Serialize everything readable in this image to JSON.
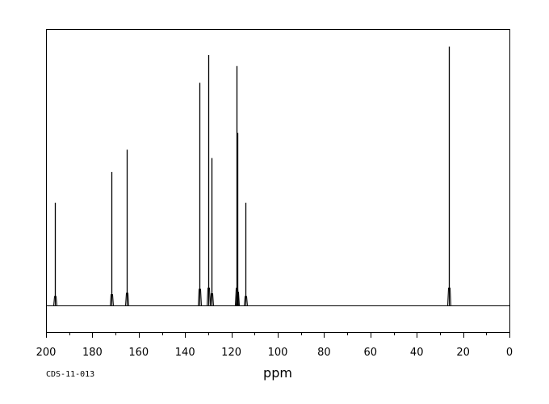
{
  "chart_data": {
    "type": "line",
    "subtype": "13C NMR stick spectrum",
    "title": "",
    "xlabel": "ppm",
    "ylabel": "",
    "xlim": [
      200,
      0
    ],
    "x_reversed": true,
    "ylim": [
      0,
      1
    ],
    "grid": false,
    "legend": "none",
    "x_ticks": [
      200,
      180,
      160,
      140,
      120,
      100,
      80,
      60,
      40,
      20,
      0
    ],
    "x_tick_labels": [
      "200",
      "180",
      "160",
      "140",
      "120",
      "100",
      "80",
      "60",
      "40",
      "20",
      "0"
    ],
    "peaks": [
      {
        "ppm": 196.0,
        "intensity": 0.37
      },
      {
        "ppm": 171.7,
        "intensity": 0.48
      },
      {
        "ppm": 165.2,
        "intensity": 0.56
      },
      {
        "ppm": 133.8,
        "intensity": 0.8
      },
      {
        "ppm": 130.0,
        "intensity": 0.9
      },
      {
        "ppm": 128.6,
        "intensity": 0.53
      },
      {
        "ppm": 117.9,
        "intensity": 0.86
      },
      {
        "ppm": 117.5,
        "intensity": 0.62
      },
      {
        "ppm": 114.1,
        "intensity": 0.37
      },
      {
        "ppm": 26.3,
        "intensity": 0.93
      }
    ],
    "annotation": "CDS-11-013",
    "colors": {
      "line": "#000000",
      "frame": "#000000",
      "background": "#ffffff"
    }
  }
}
